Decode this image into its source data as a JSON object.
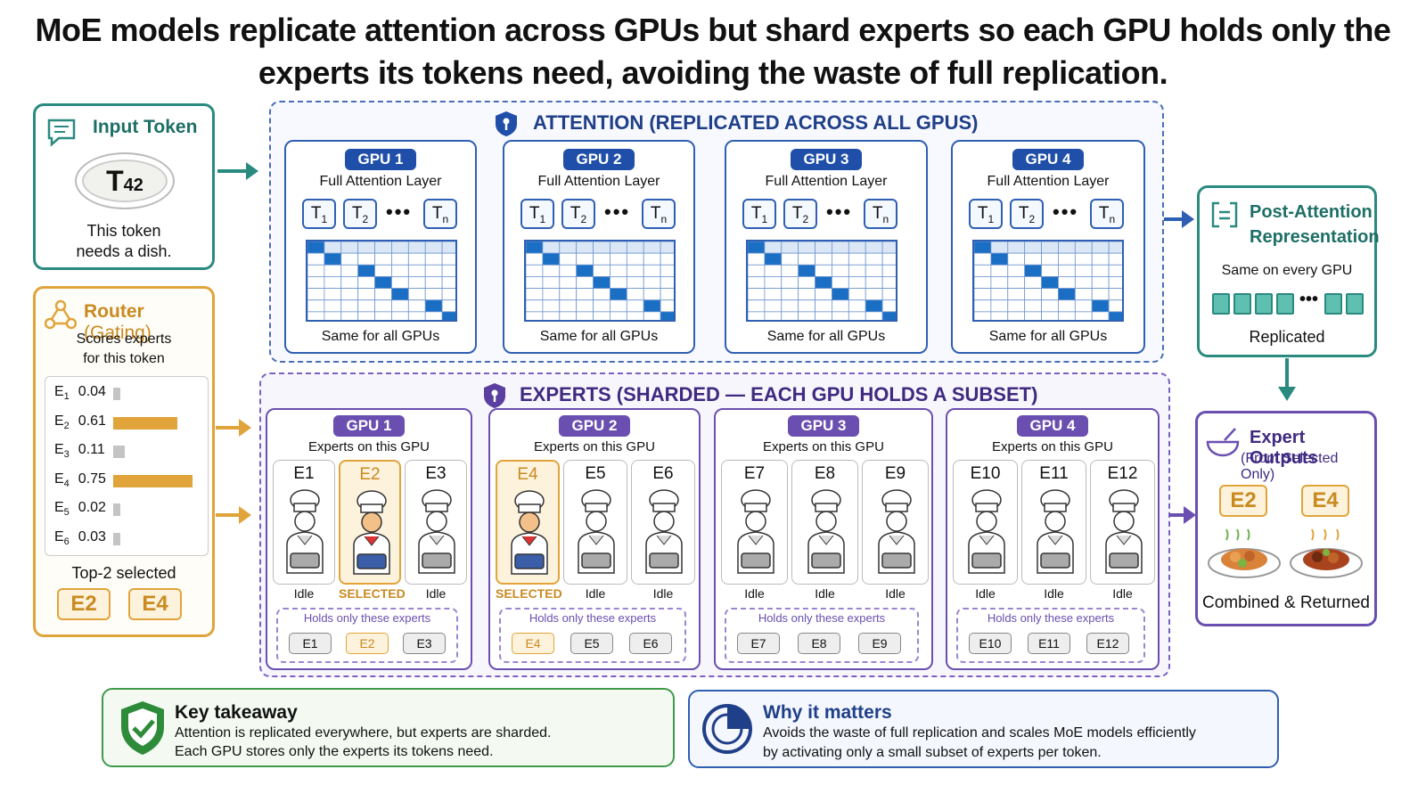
{
  "title": "MoE models replicate attention across GPUs but shard experts so each GPU holds only the experts its tokens need, avoiding the waste of full replication.",
  "input": {
    "title": "Input Token",
    "token": "T",
    "token_sub": "42",
    "desc1": "This token",
    "desc2": "needs a dish."
  },
  "router": {
    "title": "Router",
    "title_paren": "(Gating)",
    "desc1": "Scores experts",
    "desc2": "for this token",
    "scores": [
      {
        "e": "E",
        "n": "1",
        "v": "0.04",
        "frac": 0.04,
        "sel": false
      },
      {
        "e": "E",
        "n": "2",
        "v": "0.61",
        "frac": 0.61,
        "sel": true
      },
      {
        "e": "E",
        "n": "3",
        "v": "0.11",
        "frac": 0.11,
        "sel": false
      },
      {
        "e": "E",
        "n": "4",
        "v": "0.75",
        "frac": 0.75,
        "sel": true
      },
      {
        "e": "E",
        "n": "5",
        "v": "0.02",
        "frac": 0.02,
        "sel": false
      },
      {
        "e": "E",
        "n": "6",
        "v": "0.03",
        "frac": 0.03,
        "sel": false
      }
    ],
    "top_label": "Top-2 selected",
    "top": [
      "E2",
      "E4"
    ]
  },
  "attention": {
    "title": "ATTENTION (REPLICATED ACROSS ALL GPUS)",
    "gpus": [
      {
        "name": "GPU 1",
        "sub": "Full Attention Layer",
        "foot": "Same for all GPUs"
      },
      {
        "name": "GPU 2",
        "sub": "Full Attention Layer",
        "foot": "Same for all GPUs"
      },
      {
        "name": "GPU 3",
        "sub": "Full Attention Layer",
        "foot": "Same for all GPUs"
      },
      {
        "name": "GPU 4",
        "sub": "Full Attention Layer",
        "foot": "Same for all GPUs"
      }
    ],
    "tokens": [
      {
        "t": "T",
        "s": "1"
      },
      {
        "t": "T",
        "s": "2"
      },
      {
        "t": "T",
        "s": "n"
      }
    ],
    "dots": "•••"
  },
  "experts": {
    "title": "EXPERTS (SHARDED — EACH GPU HOLDS A SUBSET)",
    "sub": "Experts on this GPU",
    "holds": "Holds only these experts",
    "gpus": [
      {
        "name": "GPU 1",
        "experts": [
          {
            "n": "E1",
            "st": "Idle",
            "sel": false
          },
          {
            "n": "E2",
            "st": "SELECTED",
            "sel": true
          },
          {
            "n": "E3",
            "st": "Idle",
            "sel": false
          }
        ]
      },
      {
        "name": "GPU 2",
        "experts": [
          {
            "n": "E4",
            "st": "SELECTED",
            "sel": true
          },
          {
            "n": "E5",
            "st": "Idle",
            "sel": false
          },
          {
            "n": "E6",
            "st": "Idle",
            "sel": false
          }
        ]
      },
      {
        "name": "GPU 3",
        "experts": [
          {
            "n": "E7",
            "st": "Idle",
            "sel": false
          },
          {
            "n": "E8",
            "st": "Idle",
            "sel": false
          },
          {
            "n": "E9",
            "st": "Idle",
            "sel": false
          }
        ]
      },
      {
        "name": "GPU 4",
        "experts": [
          {
            "n": "E10",
            "st": "Idle",
            "sel": false
          },
          {
            "n": "E11",
            "st": "Idle",
            "sel": false
          },
          {
            "n": "E12",
            "st": "Idle",
            "sel": false
          }
        ]
      }
    ]
  },
  "post": {
    "title1": "Post-Attention",
    "title2": "Representation",
    "sub": "Same on every GPU",
    "dots": "•••",
    "foot": "Replicated"
  },
  "outputs": {
    "title": "Expert Outputs",
    "sub": "(From Selected Only)",
    "chips": [
      "E2",
      "E4"
    ],
    "foot": "Combined & Returned"
  },
  "takeaway": {
    "title": "Key takeaway",
    "line1": "Attention is replicated everywhere, but experts are sharded.",
    "line2": "Each GPU stores only the experts its tokens need."
  },
  "why": {
    "title": "Why it matters",
    "line1": "Avoids the waste of full replication and scales MoE models efficiently",
    "line2": "by activating only a small subset of experts per token."
  },
  "colors": {
    "teal": "#2a8a80",
    "orange": "#e0a43a",
    "blue": "#1f4fa8",
    "purple": "#6a4fb0",
    "green": "#2e8b3a"
  }
}
